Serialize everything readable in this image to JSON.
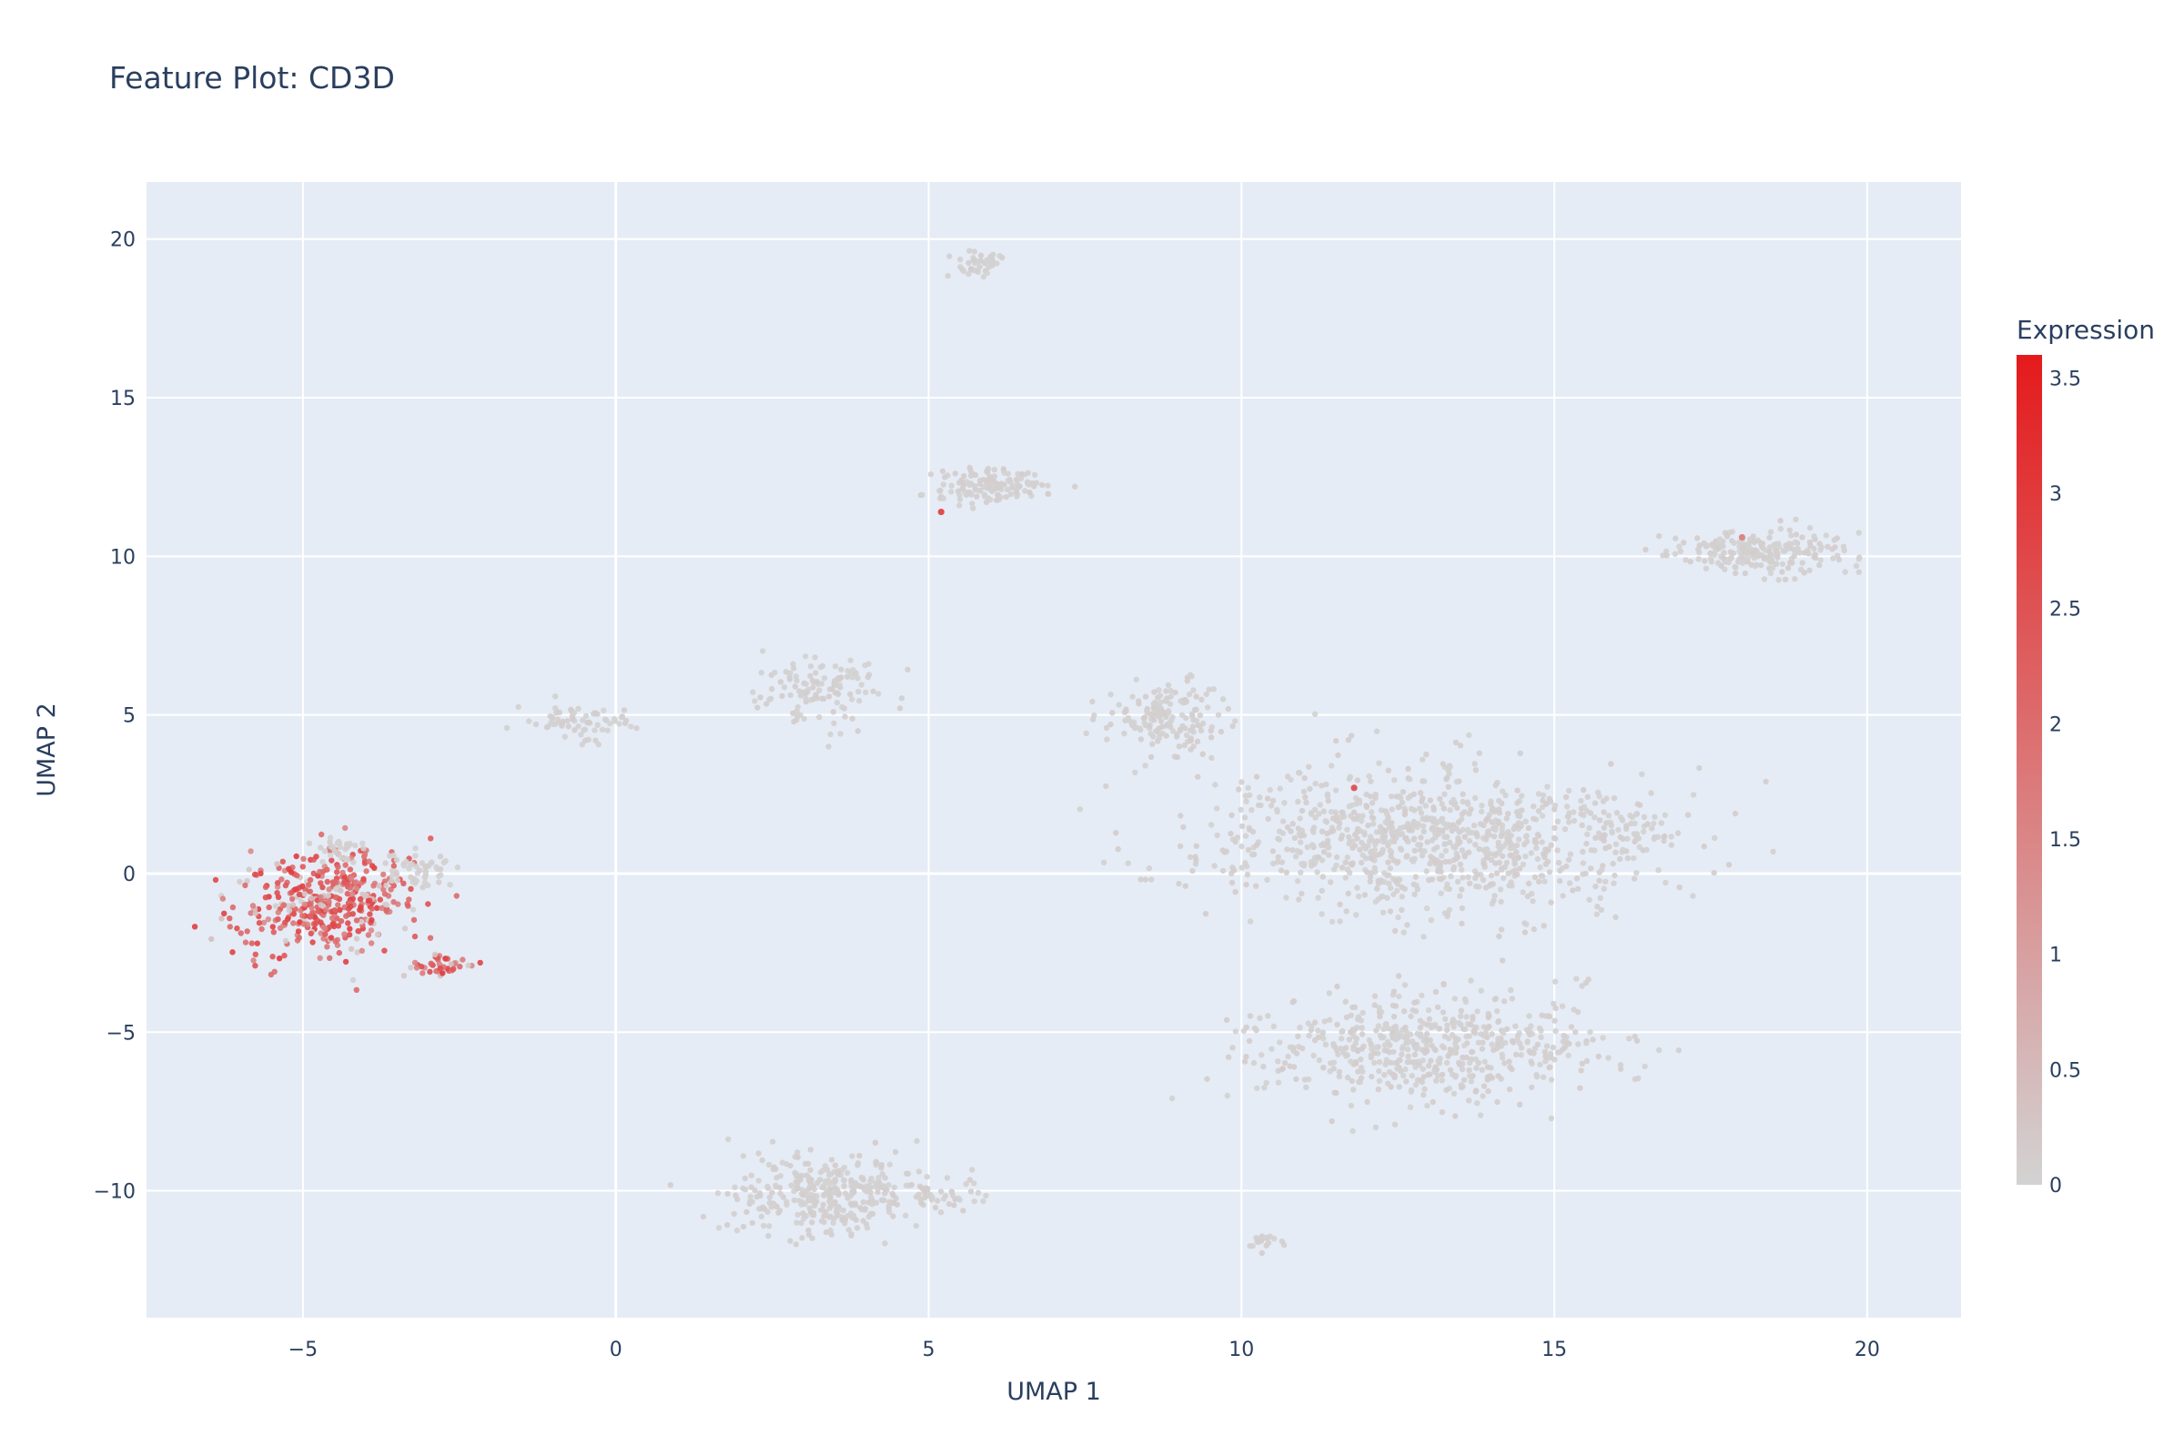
{
  "chart_data": {
    "type": "scatter",
    "title": "Feature Plot: CD3D",
    "xlabel": "UMAP 1",
    "ylabel": "UMAP 2",
    "xlim": [
      -7.5,
      21.5
    ],
    "ylim": [
      -14,
      21.8
    ],
    "x_ticks": [
      -5,
      0,
      5,
      10,
      15,
      20
    ],
    "y_ticks": [
      -10,
      -5,
      0,
      5,
      10,
      15,
      20
    ],
    "x_tick_labels": [
      "−5",
      "0",
      "5",
      "10",
      "15",
      "20"
    ],
    "y_tick_labels": [
      "−10",
      "−5",
      "0",
      "5",
      "10",
      "15",
      "20"
    ],
    "grid": true,
    "plot_bgcolor": "#e5ecf6",
    "grid_color": "#ffffff",
    "colorscale": [
      "#d3d3d3",
      "#e41a1c"
    ],
    "colorbar": {
      "title": "Expression",
      "range": [
        0,
        3.6
      ],
      "ticks": [
        0,
        0.5,
        1,
        1.5,
        2,
        2.5,
        3,
        3.5
      ],
      "tick_labels": [
        "0",
        "0.5",
        "1",
        "1.5",
        "2",
        "2.5",
        "3",
        "3.5"
      ]
    },
    "clusters": [
      {
        "cx": 12.9,
        "cy": 1.1,
        "sx": 2.35,
        "sy": 1.5,
        "n": 900,
        "expr": "low"
      },
      {
        "cx": 16.2,
        "cy": 1.4,
        "sx": 0.55,
        "sy": 0.6,
        "n": 60,
        "expr": "low"
      },
      {
        "cx": 13.0,
        "cy": -5.5,
        "sx": 1.85,
        "sy": 1.15,
        "n": 560,
        "expr": "low"
      },
      {
        "cx": 3.4,
        "cy": -10.1,
        "sx": 1.05,
        "sy": 0.8,
        "n": 360,
        "expr": "low"
      },
      {
        "cx": 5.1,
        "cy": -10.2,
        "sx": 0.55,
        "sy": 0.35,
        "n": 40,
        "expr": "low"
      },
      {
        "cx": 18.3,
        "cy": 10.1,
        "sx": 1.0,
        "sy": 0.45,
        "n": 220,
        "expr": "low"
      },
      {
        "cx": 8.8,
        "cy": 4.9,
        "sx": 0.55,
        "sy": 0.75,
        "n": 160,
        "expr": "low"
      },
      {
        "cx": 6.0,
        "cy": 12.2,
        "sx": 0.6,
        "sy": 0.35,
        "n": 130,
        "expr": "low"
      },
      {
        "cx": 5.8,
        "cy": 19.2,
        "sx": 0.25,
        "sy": 0.3,
        "n": 40,
        "expr": "low"
      },
      {
        "cx": 3.3,
        "cy": 5.8,
        "sx": 0.65,
        "sy": 0.7,
        "n": 120,
        "expr": "low"
      },
      {
        "cx": -0.6,
        "cy": 4.8,
        "sx": 0.55,
        "sy": 0.35,
        "n": 70,
        "expr": "low"
      },
      {
        "cx": 10.3,
        "cy": -11.6,
        "sx": 0.2,
        "sy": 0.2,
        "n": 20,
        "expr": "low"
      },
      {
        "cx": -4.6,
        "cy": -1.0,
        "sx": 0.9,
        "sy": 1.1,
        "n": 420,
        "expr": "high"
      },
      {
        "cx": -3.2,
        "cy": 0.1,
        "sx": 0.35,
        "sy": 0.35,
        "n": 50,
        "expr": "low"
      },
      {
        "cx": -4.4,
        "cy": 0.8,
        "sx": 0.3,
        "sy": 0.3,
        "n": 30,
        "expr": "low"
      },
      {
        "cx": -2.8,
        "cy": -2.9,
        "sx": 0.35,
        "sy": 0.25,
        "n": 40,
        "expr": "high"
      }
    ],
    "highlighted_points": [
      {
        "x": 11.8,
        "y": 2.7,
        "value": 2.4
      },
      {
        "x": 5.2,
        "y": 11.4,
        "value": 2.6
      },
      {
        "x": 18.0,
        "y": 10.6,
        "value": 1.5
      }
    ]
  }
}
